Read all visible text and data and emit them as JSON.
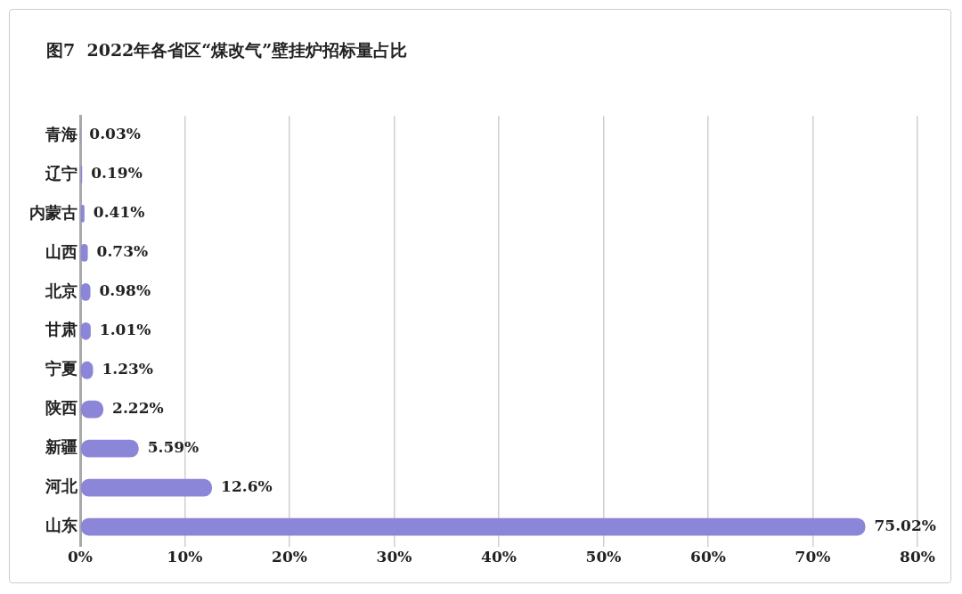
{
  "chart_data": {
    "type": "bar",
    "orientation": "horizontal",
    "title": "图7  2022年各省区“煤改气”壁挂炉招标量占比",
    "categories": [
      "青海",
      "辽宁",
      "内蒙古",
      "山西",
      "北京",
      "甘肃",
      "宁夏",
      "陕西",
      "新疆",
      "河北",
      "山东"
    ],
    "values": [
      0.03,
      0.19,
      0.41,
      0.73,
      0.98,
      1.01,
      1.23,
      2.22,
      5.59,
      12.6,
      75.02
    ],
    "value_labels": [
      "0.03%",
      "0.19%",
      "0.41%",
      "0.73%",
      "0.98%",
      "1.01%",
      "1.23%",
      "2.22%",
      "5.59%",
      "12.6%",
      "75.02%"
    ],
    "color": "#8c86d8",
    "xlim": [
      0,
      80
    ],
    "xticks": [
      {
        "value": 0,
        "label": "0%"
      },
      {
        "value": 10,
        "label": "10%"
      },
      {
        "value": 20,
        "label": "20%"
      },
      {
        "value": 30,
        "label": "30%"
      },
      {
        "value": 40,
        "label": "40%"
      },
      {
        "value": 50,
        "label": "50%"
      },
      {
        "value": 60,
        "label": "60%"
      },
      {
        "value": 70,
        "label": "70%"
      },
      {
        "value": 80,
        "label": "80%"
      }
    ],
    "grid": "x",
    "legend": false
  }
}
